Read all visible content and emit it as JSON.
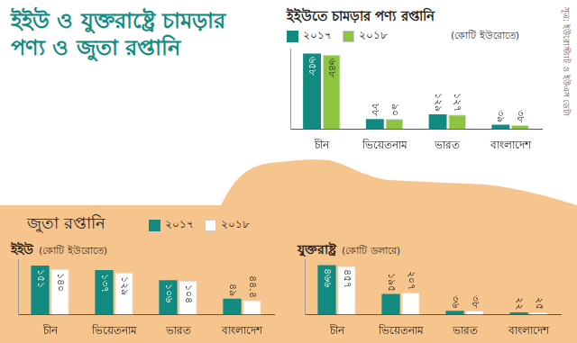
{
  "title": "ইইউ ও যুক্তরাষ্ট্রে চামড়ার পণ্য ও জুতা রপ্তানি",
  "source": "সূত্র: ইউরোস্ট্যাট ও ইউএস ডেটা",
  "section_title": "জুতা রপ্তানি",
  "chart_data": [
    {
      "type": "bar",
      "title": "ইইউতে চামড়ার পণ্য রপ্তানি",
      "subtitle": "(কোটি ইউরোতে)",
      "categories": [
        "চীন",
        "ভিয়েতনাম",
        "ভারত",
        "বাংলাদেশ"
      ],
      "series": [
        {
          "name": "২০১৭",
          "color": "#138a80",
          "values": [
            658,
            88,
            129,
            39
          ],
          "value_labels": [
            "৬৫৮",
            "৮৮",
            "১২৯",
            "৩৯"
          ]
        },
        {
          "name": "২০১৮",
          "color": "#8dc540",
          "values": [
            648,
            90,
            127,
            38
          ],
          "value_labels": [
            "৬৪৮",
            "৯০",
            "১২৭",
            "৩৮"
          ]
        }
      ],
      "ylim": [
        0,
        700
      ],
      "grid": false,
      "tick_labels": "x",
      "data_labels": true,
      "legend": "top"
    },
    {
      "type": "bar",
      "title": "ইইউ",
      "subtitle": "(কোটি ইউরোতে)",
      "categories": [
        "চীন",
        "ভিয়েতনাম",
        "ভারত",
        "বাংলাদেশ"
      ],
      "series": [
        {
          "name": "২০১৭",
          "color": "#138a80",
          "values": [
            151,
            137,
            106,
            49
          ],
          "value_labels": [
            "১৫১",
            "১৩৭",
            "১০৬",
            "৪৯"
          ]
        },
        {
          "name": "২০১৮",
          "color": "#ffffff",
          "values": [
            140,
            129,
            104,
            44.4
          ],
          "value_labels": [
            "১৪০",
            "১২৯",
            "১০৪",
            "৪৪.৪"
          ]
        }
      ],
      "ylim": [
        0,
        170
      ],
      "grid": false,
      "tick_labels": "x",
      "data_labels": true,
      "legend": "top"
    },
    {
      "type": "bar",
      "title": "যুক্তরাষ্ট্র",
      "subtitle": "(কোটি ডলারে)",
      "categories": [
        "চীন",
        "ভিয়েতনাম",
        "ভারত",
        "বাংলাদেশ"
      ],
      "series": [
        {
          "name": "২০১৭",
          "color": "#138a80",
          "values": [
            466,
            195,
            36,
            22
          ],
          "value_labels": [
            "৪৬৬",
            "১৯৫",
            "৩৬",
            "২২"
          ]
        },
        {
          "name": "২০১৮",
          "color": "#ffffff",
          "values": [
            457,
            207,
            38,
            25
          ],
          "value_labels": [
            "৪৫৭",
            "২০৭",
            "৩৮",
            "২৫"
          ]
        }
      ],
      "ylim": [
        0,
        520
      ],
      "grid": false,
      "tick_labels": "x",
      "data_labels": true
    }
  ]
}
